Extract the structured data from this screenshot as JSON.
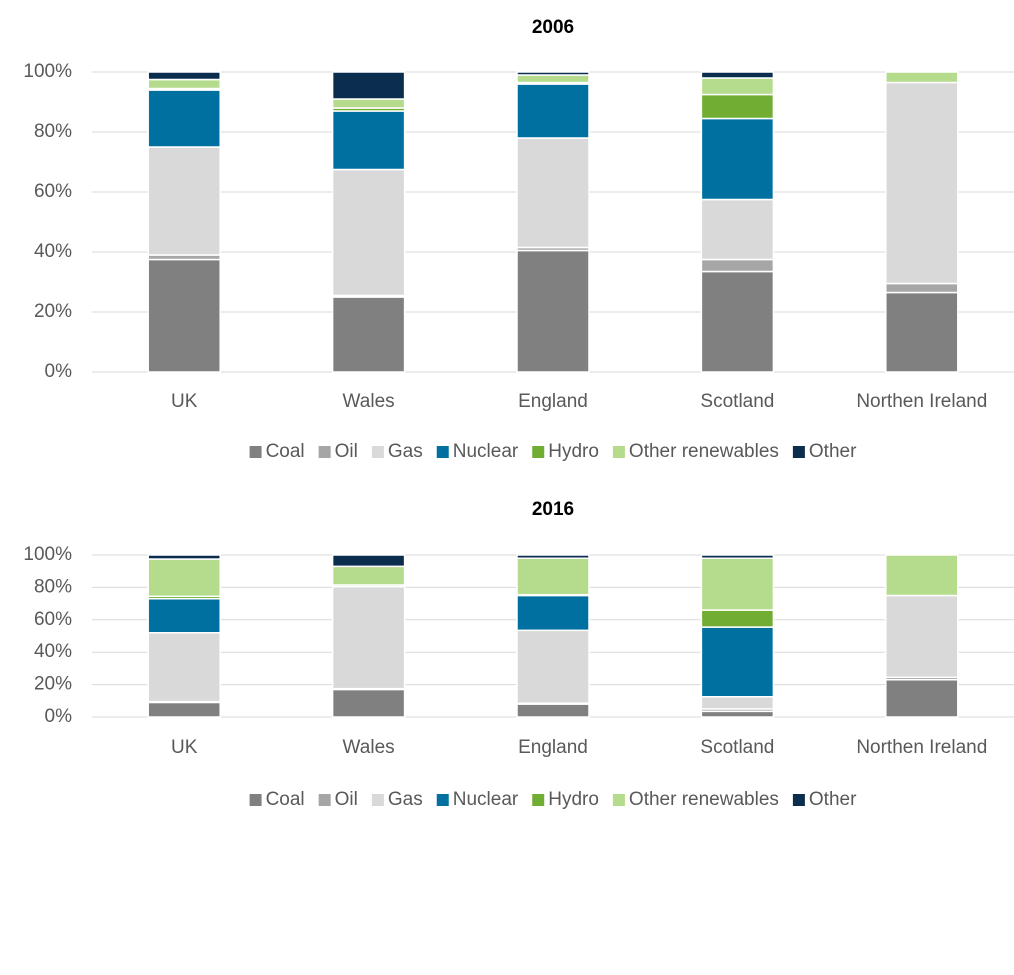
{
  "chart_data": [
    {
      "type": "stacked_bar",
      "title": "2006",
      "categories": [
        "UK",
        "Wales",
        "England",
        "Scotland",
        "Northen Ireland"
      ],
      "series": [
        {
          "name": "Coal",
          "color": "#808080",
          "values": [
            37.5,
            25,
            40.5,
            33.5,
            26.5
          ]
        },
        {
          "name": "Oil",
          "color": "#a6a6a6",
          "values": [
            1.5,
            0.5,
            1,
            4,
            3
          ]
        },
        {
          "name": "Gas",
          "color": "#d9d9d9",
          "values": [
            36,
            42,
            36.5,
            20,
            67
          ]
        },
        {
          "name": "Nuclear",
          "color": "#0070a0",
          "values": [
            19,
            19.5,
            18,
            27,
            0
          ]
        },
        {
          "name": "Hydro",
          "color": "#70ad32",
          "values": [
            0.5,
            1,
            0.5,
            8,
            0
          ]
        },
        {
          "name": "Other renewables",
          "color": "#b4dc8c",
          "values": [
            3,
            3,
            2.5,
            5.5,
            3.5
          ]
        },
        {
          "name": "Other",
          "color": "#0b2d4e",
          "values": [
            2.5,
            9,
            1,
            2,
            0
          ]
        }
      ],
      "ylim": [
        0,
        100
      ],
      "yticks": [
        {
          "value": 0,
          "label": "0%"
        },
        {
          "value": 20,
          "label": "20%"
        },
        {
          "value": 40,
          "label": "40%"
        },
        {
          "value": 60,
          "label": "60%"
        },
        {
          "value": 80,
          "label": "80%"
        },
        {
          "value": 100,
          "label": "100%"
        }
      ],
      "grid": true,
      "legend": "bottom"
    },
    {
      "type": "stacked_bar",
      "title": "2016",
      "categories": [
        "UK",
        "Wales",
        "England",
        "Scotland",
        "Northen Ireland"
      ],
      "series": [
        {
          "name": "Coal",
          "color": "#808080",
          "values": [
            9,
            17,
            8,
            3.5,
            23
          ]
        },
        {
          "name": "Oil",
          "color": "#a6a6a6",
          "values": [
            0.5,
            0.5,
            0.5,
            1.5,
            1.5
          ]
        },
        {
          "name": "Gas",
          "color": "#d9d9d9",
          "values": [
            42.5,
            63,
            45,
            7.5,
            50.5
          ]
        },
        {
          "name": "Nuclear",
          "color": "#0070a0",
          "values": [
            21,
            0,
            21.5,
            43,
            0
          ]
        },
        {
          "name": "Hydro",
          "color": "#70ad32",
          "values": [
            1.5,
            1,
            0.5,
            10.5,
            0
          ]
        },
        {
          "name": "Other renewables",
          "color": "#b4dc8c",
          "values": [
            23,
            11.5,
            22.5,
            32,
            25
          ]
        },
        {
          "name": "Other",
          "color": "#0b2d4e",
          "values": [
            2.5,
            7,
            2,
            2,
            0
          ]
        }
      ],
      "ylim": [
        0,
        100
      ],
      "yticks": [
        {
          "value": 0,
          "label": "0%"
        },
        {
          "value": 20,
          "label": "20%"
        },
        {
          "value": 40,
          "label": "40%"
        },
        {
          "value": 60,
          "label": "60%"
        },
        {
          "value": 80,
          "label": "80%"
        },
        {
          "value": 100,
          "label": "100%"
        }
      ],
      "grid": true,
      "legend": "bottom"
    }
  ]
}
